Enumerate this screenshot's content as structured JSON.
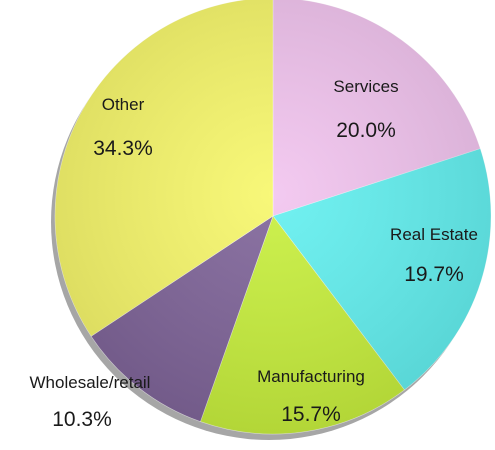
{
  "chart_data": {
    "type": "pie",
    "title": "",
    "legend": "none",
    "start_angle_deg": 0,
    "direction": "clockwise",
    "slices": [
      {
        "label": "Services",
        "value": 20.0,
        "display": "20.0%",
        "color": "#f2c4ef"
      },
      {
        "label": "Real Estate",
        "value": 19.7,
        "display": "19.7%",
        "color": "#62f0f0"
      },
      {
        "label": "Manufacturing",
        "value": 15.7,
        "display": "15.7%",
        "color": "#c8f03c"
      },
      {
        "label": "Wholesale/retail",
        "value": 10.3,
        "display": "10.3%",
        "color": "#7f6499"
      },
      {
        "label": "Other",
        "value": 34.3,
        "display": "34.3%",
        "color": "#f7f76a"
      }
    ]
  }
}
